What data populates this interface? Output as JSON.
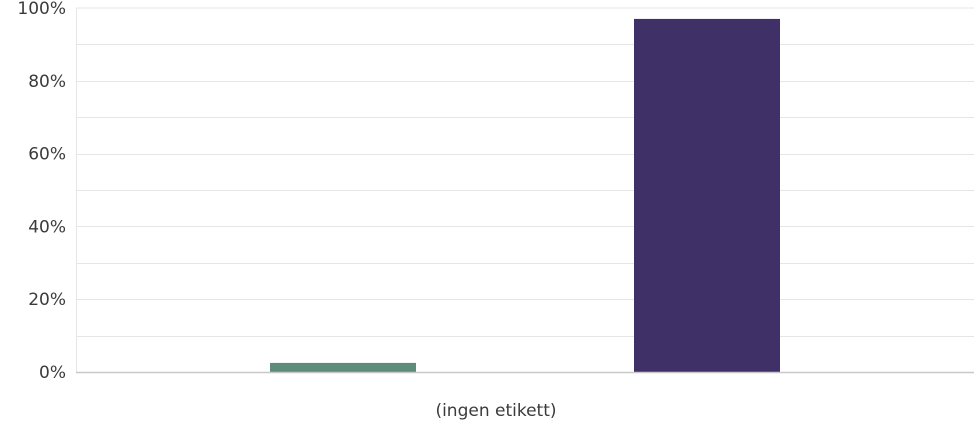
{
  "chart_data": {
    "type": "bar",
    "categories": [
      "(ingen etikett)"
    ],
    "series": [
      {
        "values": [
          2.5
        ],
        "color": "#5e8c7a"
      },
      {
        "values": [
          97
        ],
        "color": "#3f3168"
      }
    ],
    "ylim": [
      0,
      100
    ],
    "yticks": [
      0,
      20,
      40,
      60,
      80,
      100
    ],
    "ytick_suffix": "%",
    "grid": true,
    "legend": "none",
    "colors": {
      "grid": "#e6e6e6",
      "axis": "#c8c8c8",
      "text": "#3b3b3b"
    }
  }
}
